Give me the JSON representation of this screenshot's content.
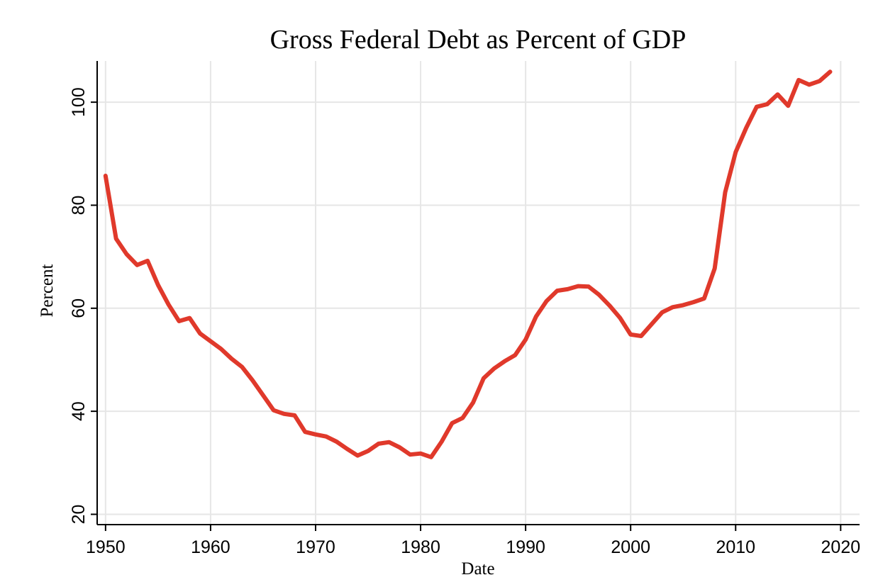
{
  "chart_data": {
    "type": "line",
    "title": "Gross Federal Debt as Percent of GDP",
    "xlabel": "Date",
    "ylabel": "Percent",
    "xlim": [
      1949.2,
      2021.8
    ],
    "ylim": [
      18,
      108
    ],
    "x_ticks": [
      1950,
      1960,
      1970,
      1980,
      1990,
      2000,
      2010,
      2020
    ],
    "y_ticks": [
      20,
      40,
      60,
      80,
      100
    ],
    "grid": true,
    "colors": {
      "line": "#e0392b",
      "grid": "#e6e6e6",
      "axis": "#000000"
    },
    "series": [
      {
        "name": "Gross Federal Debt as Percent of GDP",
        "x": [
          1950,
          1951,
          1952,
          1953,
          1954,
          1955,
          1956,
          1957,
          1958,
          1959,
          1960,
          1961,
          1962,
          1963,
          1964,
          1965,
          1966,
          1967,
          1968,
          1969,
          1970,
          1971,
          1972,
          1973,
          1974,
          1975,
          1976,
          1977,
          1978,
          1979,
          1980,
          1981,
          1982,
          1983,
          1984,
          1985,
          1986,
          1987,
          1988,
          1989,
          1990,
          1991,
          1992,
          1993,
          1994,
          1995,
          1996,
          1997,
          1998,
          1999,
          2000,
          2001,
          2002,
          2003,
          2004,
          2005,
          2006,
          2007,
          2008,
          2009,
          2010,
          2011,
          2012,
          2013,
          2014,
          2015,
          2016,
          2017,
          2018,
          2019
        ],
        "values": [
          85.7,
          73.5,
          70.5,
          68.4,
          69.2,
          64.5,
          60.7,
          57.5,
          58.1,
          55.1,
          53.6,
          52.1,
          50.2,
          48.6,
          46.0,
          43.1,
          40.2,
          39.5,
          39.2,
          36.0,
          35.5,
          35.1,
          34.1,
          32.7,
          31.4,
          32.3,
          33.7,
          34.0,
          33.0,
          31.6,
          31.8,
          31.1,
          34.1,
          37.7,
          38.7,
          41.7,
          46.4,
          48.3,
          49.7,
          50.9,
          53.9,
          58.4,
          61.4,
          63.4,
          63.7,
          64.3,
          64.2,
          62.6,
          60.5,
          58.1,
          54.9,
          54.6,
          56.9,
          59.2,
          60.2,
          60.6,
          61.2,
          61.9,
          67.7,
          82.5,
          90.3,
          95.0,
          99.1,
          99.6,
          101.5,
          99.3,
          104.3,
          103.4,
          104.1,
          105.9
        ]
      }
    ]
  }
}
